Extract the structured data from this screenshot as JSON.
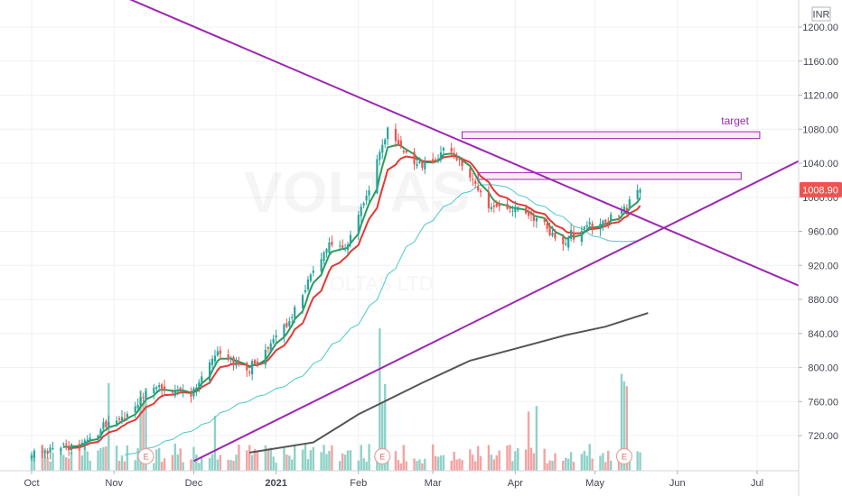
{
  "chart_data": {
    "type": "candlestick",
    "currency": "INR",
    "watermark": "VOLTAS",
    "watermark_sub": "VOLTAS LTD",
    "current_price": "1008.90",
    "ylim": [
      690,
      1230
    ],
    "y_ticks": [
      "720.00",
      "760.00",
      "800.00",
      "840.00",
      "880.00",
      "920.00",
      "960.00",
      "1000.00",
      "1040.00",
      "1080.00",
      "1120.00",
      "1160.00",
      "1200.00"
    ],
    "x_labels": [
      {
        "label": "Oct",
        "date": "2020-10-01",
        "bold": false
      },
      {
        "label": "Nov",
        "date": "2020-11-01",
        "bold": false
      },
      {
        "label": "Dec",
        "date": "2020-12-01",
        "bold": false
      },
      {
        "label": "2021",
        "date": "2021-01-01",
        "bold": true
      },
      {
        "label": "Feb",
        "date": "2021-02-01",
        "bold": false
      },
      {
        "label": "Mar",
        "date": "2021-03-01",
        "bold": false
      },
      {
        "label": "Apr",
        "date": "2021-04-01",
        "bold": false
      },
      {
        "label": "May",
        "date": "2021-05-01",
        "bold": false
      },
      {
        "label": "Jun",
        "date": "2021-06-01",
        "bold": false
      },
      {
        "label": "Jul",
        "date": "2021-07-01",
        "bold": false
      }
    ],
    "annotation": "target",
    "price_keypoints": [
      {
        "date": "2020-10-01",
        "price": 700
      },
      {
        "date": "2020-10-20",
        "price": 712
      },
      {
        "date": "2020-11-05",
        "price": 745
      },
      {
        "date": "2020-11-15",
        "price": 778
      },
      {
        "date": "2020-11-30",
        "price": 770
      },
      {
        "date": "2020-12-10",
        "price": 818
      },
      {
        "date": "2020-12-22",
        "price": 795
      },
      {
        "date": "2021-01-05",
        "price": 850
      },
      {
        "date": "2021-01-15",
        "price": 912
      },
      {
        "date": "2021-01-22",
        "price": 948
      },
      {
        "date": "2021-01-27",
        "price": 938
      },
      {
        "date": "2021-02-05",
        "price": 1010
      },
      {
        "date": "2021-02-12",
        "price": 1085
      },
      {
        "date": "2021-02-17",
        "price": 1055
      },
      {
        "date": "2021-02-25",
        "price": 1035
      },
      {
        "date": "2021-03-05",
        "price": 1055
      },
      {
        "date": "2021-03-12",
        "price": 1040
      },
      {
        "date": "2021-03-22",
        "price": 985
      },
      {
        "date": "2021-04-01",
        "price": 988
      },
      {
        "date": "2021-04-10",
        "price": 975
      },
      {
        "date": "2021-04-18",
        "price": 948
      },
      {
        "date": "2021-04-25",
        "price": 962
      },
      {
        "date": "2021-05-05",
        "price": 972
      },
      {
        "date": "2021-05-12",
        "price": 985
      },
      {
        "date": "2021-05-18",
        "price": 1008.9
      }
    ],
    "ma_200": [
      {
        "date": "2020-12-22",
        "price": 700
      },
      {
        "date": "2021-01-15",
        "price": 712
      },
      {
        "date": "2021-02-01",
        "price": 745
      },
      {
        "date": "2021-02-25",
        "price": 782
      },
      {
        "date": "2021-03-15",
        "price": 808
      },
      {
        "date": "2021-04-01",
        "price": 822
      },
      {
        "date": "2021-04-20",
        "price": 838
      },
      {
        "date": "2021-05-05",
        "price": 848
      },
      {
        "date": "2021-05-21",
        "price": 864
      }
    ],
    "trendlines": [
      {
        "name": "descending",
        "p1": {
          "date": "2020-10-31",
          "price": 1242
        },
        "p2": {
          "date": "2021-08-15",
          "price": 857
        }
      },
      {
        "name": "ascending",
        "p1": {
          "date": "2020-12-01",
          "price": 690
        },
        "p2": {
          "date": "2021-08-15",
          "price": 1088
        }
      }
    ],
    "zones": [
      {
        "from": "2021-03-12",
        "to": "2021-07-02",
        "low": 1069,
        "high": 1077
      },
      {
        "from": "2021-03-18",
        "to": "2021-06-25",
        "low": 1021,
        "high": 1029
      }
    ],
    "earnings_dates": [
      "2020-11-13",
      "2021-02-10",
      "2021-05-12"
    ],
    "colors": {
      "up": "#26a69a",
      "down": "#ef5350",
      "volume_up": "#8fd1c7",
      "volume_down": "#f4a3a3",
      "ma_fast": "#2e9a5a",
      "ma_mid": "#e53935",
      "ma_50": "#4dc9c9",
      "ma_200": "#555555",
      "trendline": "#9c27b0",
      "price_tag": "#ef5350",
      "zone_fill": "#fbeaf3",
      "grid": "#eef0f3",
      "axis_text": "#434651"
    }
  }
}
